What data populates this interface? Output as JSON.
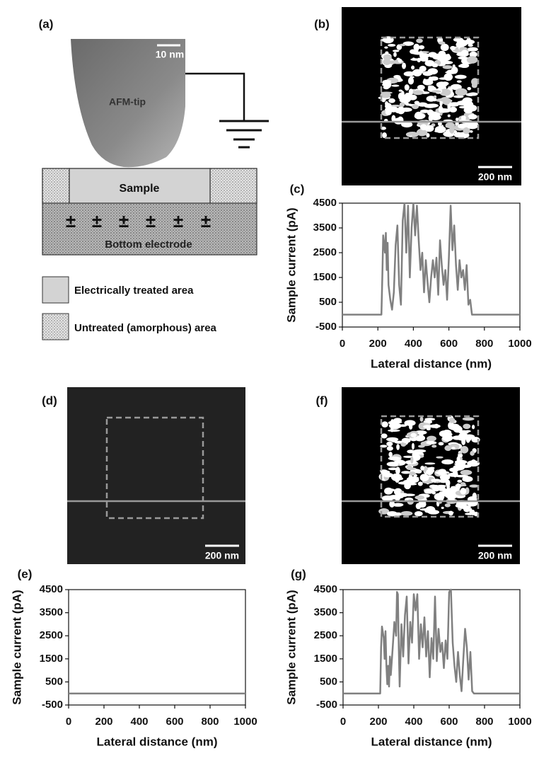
{
  "figure": {
    "panel_a": {
      "label": "(a)",
      "scale_bar": "10 nm",
      "tip": "AFM-tip",
      "sample": "Sample",
      "charge": "±",
      "electrode": "Bottom electrode",
      "legend": [
        "Electrically treated area",
        "Untreated (amorphous) area"
      ]
    },
    "images": [
      {
        "label": "(b)",
        "scale_bar": "200 nm"
      },
      {
        "label": "(d)",
        "scale_bar": "200 nm"
      },
      {
        "label": "(f)",
        "scale_bar": "200 nm"
      }
    ]
  },
  "chart_data": [
    {
      "type": "line",
      "panel_label": "(c)",
      "xlabel": "Lateral distance (nm)",
      "ylabel": "Sample current (pA)",
      "color": "#808080",
      "xlim": [
        0,
        1000
      ],
      "xticks": [
        0,
        200,
        400,
        600,
        800,
        1000
      ],
      "ylim": [
        -500,
        4500
      ],
      "yticks": [
        -500,
        500,
        1500,
        2500,
        3500,
        4500
      ],
      "x": [
        0,
        100,
        200,
        220,
        225,
        230,
        240,
        245,
        250,
        255,
        260,
        270,
        280,
        290,
        300,
        310,
        320,
        330,
        340,
        350,
        360,
        370,
        380,
        390,
        400,
        410,
        420,
        430,
        440,
        450,
        460,
        470,
        480,
        490,
        500,
        510,
        520,
        530,
        540,
        550,
        560,
        570,
        580,
        590,
        600,
        610,
        620,
        630,
        640,
        650,
        660,
        670,
        680,
        690,
        700,
        710,
        720,
        730,
        740,
        800,
        900,
        1000
      ],
      "values": [
        0,
        0,
        0,
        0,
        1500,
        3200,
        2500,
        3300,
        1800,
        2900,
        1200,
        600,
        200,
        900,
        2800,
        3600,
        1200,
        400,
        3800,
        4500,
        2500,
        4400,
        1500,
        3500,
        4500,
        3200,
        4400,
        3000,
        1800,
        2500,
        900,
        2200,
        1300,
        500,
        1500,
        2200,
        1500,
        2300,
        800,
        3000,
        2000,
        1200,
        1800,
        600,
        2300,
        4400,
        2600,
        3600,
        2000,
        1000,
        2200,
        1500,
        1800,
        1000,
        2000,
        400,
        600,
        0,
        0,
        0,
        0,
        0
      ]
    },
    {
      "type": "line",
      "panel_label": "(e)",
      "xlabel": "Lateral distance (nm)",
      "ylabel": "Sample current (pA)",
      "color": "#808080",
      "xlim": [
        0,
        1000
      ],
      "xticks": [
        0,
        200,
        400,
        600,
        800,
        1000
      ],
      "ylim": [
        -500,
        4500
      ],
      "yticks": [
        -500,
        500,
        1500,
        2500,
        3500,
        4500
      ],
      "x": [
        0,
        250,
        500,
        750,
        1000
      ],
      "values": [
        0,
        0,
        0,
        0,
        0
      ]
    },
    {
      "type": "line",
      "panel_label": "(g)",
      "xlabel": "Lateral distance (nm)",
      "ylabel": "Sample current (pA)",
      "color": "#808080",
      "xlim": [
        0,
        1000
      ],
      "xticks": [
        0,
        200,
        400,
        600,
        800,
        1000
      ],
      "ylim": [
        -500,
        4500
      ],
      "yticks": [
        -500,
        500,
        1500,
        2500,
        3500,
        4500
      ],
      "x": [
        0,
        200,
        210,
        215,
        220,
        230,
        235,
        240,
        245,
        250,
        255,
        260,
        265,
        270,
        280,
        290,
        300,
        305,
        310,
        315,
        320,
        330,
        340,
        350,
        360,
        370,
        380,
        390,
        400,
        410,
        420,
        430,
        440,
        450,
        460,
        470,
        480,
        490,
        500,
        510,
        520,
        530,
        540,
        550,
        560,
        570,
        580,
        590,
        600,
        610,
        620,
        630,
        640,
        650,
        660,
        670,
        680,
        690,
        700,
        710,
        720,
        730,
        740,
        800,
        900,
        1000
      ],
      "values": [
        0,
        0,
        0,
        2000,
        2900,
        2400,
        1500,
        2700,
        1200,
        400,
        1200,
        300,
        1600,
        800,
        1900,
        3100,
        2500,
        4400,
        4300,
        2000,
        300,
        3000,
        1600,
        3400,
        4200,
        1300,
        3100,
        2200,
        4300,
        3600,
        4300,
        1500,
        3000,
        2000,
        3300,
        1600,
        2700,
        700,
        2400,
        1500,
        4200,
        1400,
        2800,
        1800,
        2200,
        1100,
        2300,
        1500,
        4400,
        4500,
        2200,
        1200,
        500,
        1800,
        800,
        100,
        1500,
        2800,
        2000,
        600,
        1800,
        100,
        0,
        0,
        0,
        0
      ]
    }
  ]
}
